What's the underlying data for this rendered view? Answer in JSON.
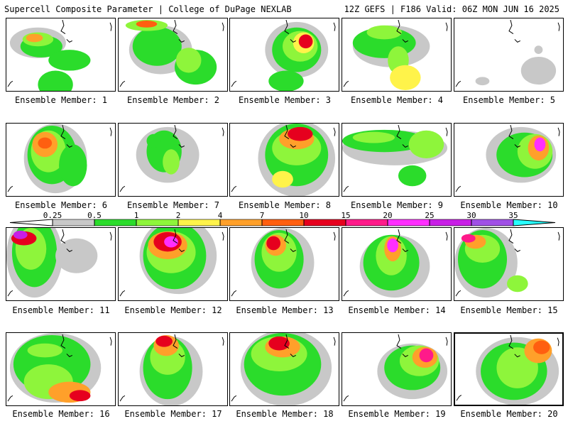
{
  "header": {
    "title_left": "Supercell Composite Parameter | College of DuPage NEXLAB",
    "title_right": "12Z GEFS | F186 Valid: 06Z MON JUN 16 2025"
  },
  "colorbar": {
    "ticks": [
      "0.25",
      "0.5",
      "1",
      "2",
      "4",
      "7",
      "10",
      "15",
      "20",
      "25",
      "30",
      "35"
    ],
    "colors": [
      "#c8c8c8",
      "#2bdc2b",
      "#8ef53b",
      "#fff34a",
      "#ffa02a",
      "#ff5f10",
      "#e6001e",
      "#ff1a8a",
      "#ff2eff",
      "#c81ee6",
      "#a050e6",
      "#28ffff"
    ]
  },
  "panels": [
    {
      "label": "Ensemble Member: 1"
    },
    {
      "label": "Ensemble Member: 2"
    },
    {
      "label": "Ensemble Member: 3"
    },
    {
      "label": "Ensemble Member: 4"
    },
    {
      "label": "Ensemble Member: 5"
    },
    {
      "label": "Ensemble Member: 6"
    },
    {
      "label": "Ensemble Member: 7"
    },
    {
      "label": "Ensemble Member: 8"
    },
    {
      "label": "Ensemble Member: 9"
    },
    {
      "label": "Ensemble Member: 10"
    },
    {
      "label": "Ensemble Member: 11"
    },
    {
      "label": "Ensemble Member: 12"
    },
    {
      "label": "Ensemble Member: 13"
    },
    {
      "label": "Ensemble Member: 14"
    },
    {
      "label": "Ensemble Member: 15"
    },
    {
      "label": "Ensemble Member: 16"
    },
    {
      "label": "Ensemble Member: 17"
    },
    {
      "label": "Ensemble Member: 18"
    },
    {
      "label": "Ensemble Member: 19"
    },
    {
      "label": "Ensemble Member: 20"
    }
  ]
}
